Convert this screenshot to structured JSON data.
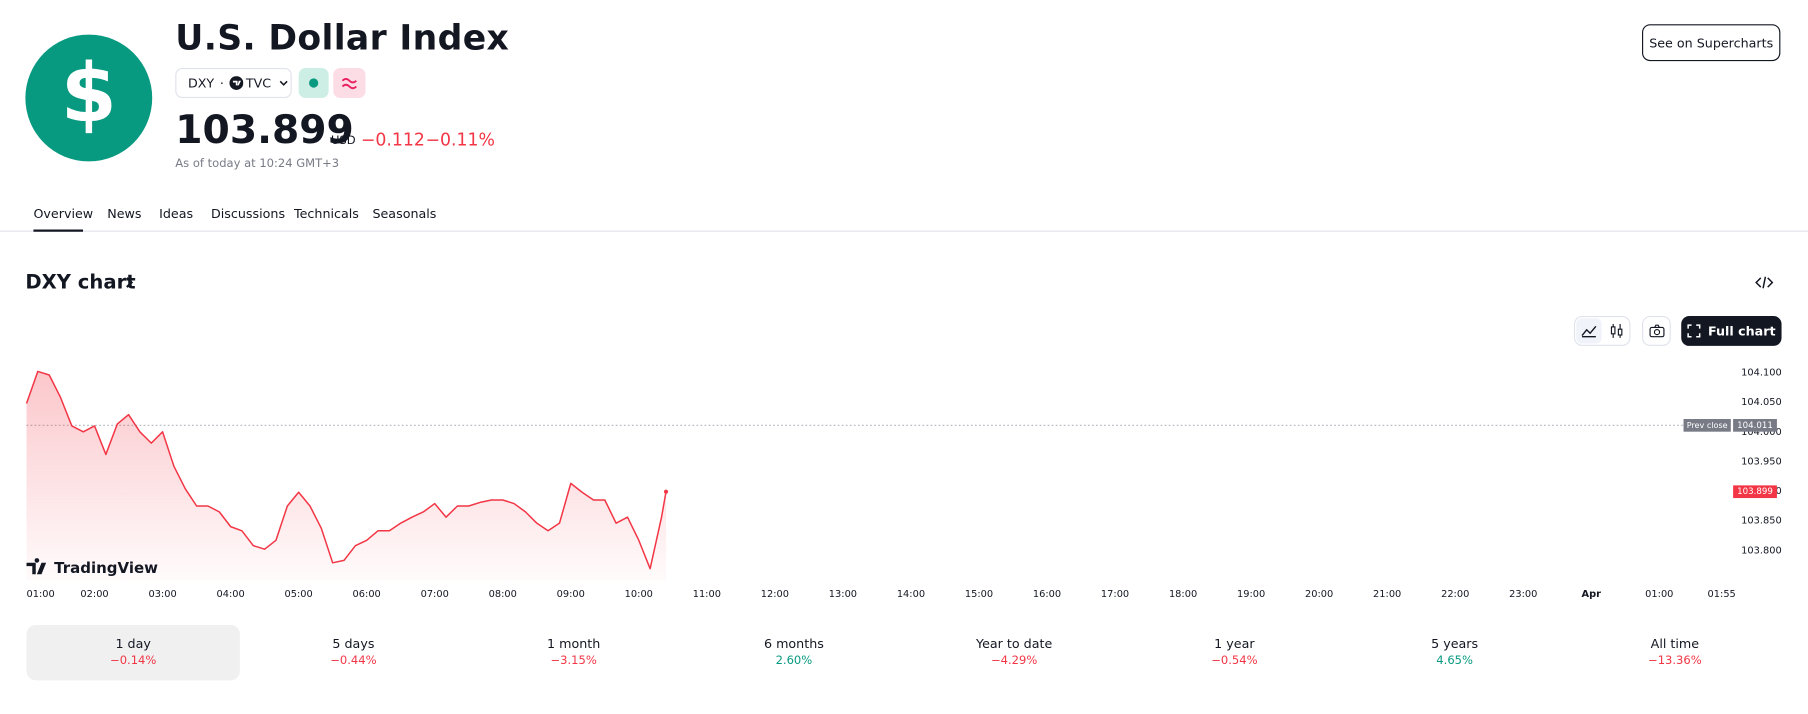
{
  "header": {
    "logo": "$",
    "title": "U.S. Dollar Index",
    "symbol": "DXY",
    "exchange": "TVC",
    "price": "103.899",
    "currency": "USD",
    "change": "−0.112",
    "change_percent": "−0.11%",
    "timestamp": "As of today at 10:24 GMT+3",
    "supercharts_button": "See on Supercharts"
  },
  "tabs": [
    "Overview",
    "News",
    "Ideas",
    "Discussions",
    "Technicals",
    "Seasonals"
  ],
  "chart_section": {
    "title": "DXY chart",
    "full_chart_button": "Full chart",
    "watermark": "TradingView"
  },
  "chart_data": {
    "type": "line",
    "color": "#f23645",
    "x": [
      "01:00",
      "01:10",
      "01:20",
      "01:30",
      "01:40",
      "01:50",
      "02:00",
      "02:10",
      "02:20",
      "02:30",
      "02:40",
      "02:50",
      "03:00",
      "03:10",
      "03:20",
      "03:30",
      "03:40",
      "03:50",
      "04:00",
      "04:10",
      "04:20",
      "04:30",
      "04:40",
      "04:50",
      "05:00",
      "05:10",
      "05:20",
      "05:30",
      "05:40",
      "05:50",
      "06:00",
      "06:10",
      "06:20",
      "06:30",
      "06:40",
      "06:50",
      "07:00",
      "07:10",
      "07:20",
      "07:30",
      "07:40",
      "07:50",
      "08:00",
      "08:10",
      "08:20",
      "08:30",
      "08:40",
      "08:50",
      "09:00",
      "09:10",
      "09:20",
      "09:30",
      "09:40",
      "09:50",
      "10:00",
      "10:10",
      "10:20",
      "10:24"
    ],
    "values": [
      104.048,
      104.102,
      104.096,
      104.058,
      104.01,
      104.0,
      104.01,
      103.962,
      104.013,
      104.029,
      104.0,
      103.981,
      104.0,
      103.942,
      103.904,
      103.875,
      103.875,
      103.865,
      103.84,
      103.833,
      103.808,
      103.802,
      103.817,
      103.875,
      103.898,
      103.875,
      103.837,
      103.779,
      103.783,
      103.808,
      103.817,
      103.833,
      103.833,
      103.846,
      103.856,
      103.865,
      103.879,
      103.856,
      103.875,
      103.875,
      103.881,
      103.885,
      103.885,
      103.879,
      103.865,
      103.846,
      103.833,
      103.846,
      103.913,
      103.898,
      103.885,
      103.885,
      103.846,
      103.856,
      103.817,
      103.769,
      103.856,
      103.899
    ],
    "xticks": [
      "01:00",
      "02:00",
      "03:00",
      "04:00",
      "05:00",
      "06:00",
      "07:00",
      "08:00",
      "09:00",
      "10:00",
      "11:00",
      "12:00",
      "13:00",
      "14:00",
      "15:00",
      "16:00",
      "17:00",
      "18:00",
      "19:00",
      "20:00",
      "21:00",
      "22:00",
      "23:00",
      "Apr",
      "01:00",
      "01:55"
    ],
    "ylim": [
      103.75,
      104.11
    ],
    "yticks": [
      {
        "value": 103.8,
        "label": "103.800"
      },
      {
        "value": 103.85,
        "label": "103.850"
      },
      {
        "value": 103.9,
        "label": "103.900"
      },
      {
        "value": 103.95,
        "label": "103.950"
      },
      {
        "value": 104.0,
        "label": "104.000"
      },
      {
        "value": 104.05,
        "label": "104.050"
      },
      {
        "value": 104.1,
        "label": "104.100"
      }
    ],
    "annotations": [
      {
        "text": "Prev close",
        "value": 104.011
      }
    ]
  },
  "periods": [
    {
      "label": "1 day",
      "change": "−0.14%"
    },
    {
      "label": "5 days",
      "change": "−0.44%"
    },
    {
      "label": "1 month",
      "change": "−3.15%"
    },
    {
      "label": "6 months",
      "change": "2.60%"
    },
    {
      "label": "Year to date",
      "change": "−4.29%"
    },
    {
      "label": "1 year",
      "change": "−0.54%"
    },
    {
      "label": "5 years",
      "change": "4.65%"
    },
    {
      "label": "All time",
      "change": "−13.36%"
    }
  ]
}
